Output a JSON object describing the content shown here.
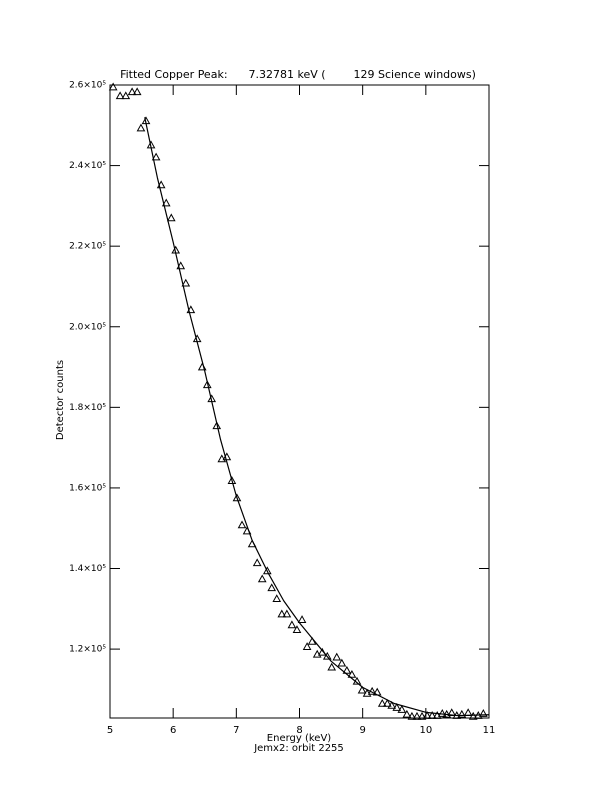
{
  "chart_data": {
    "type": "scatter",
    "title": "Fitted Copper Peak:      7.32781 keV (        129 Science windows)",
    "x_label": "Energy (keV)",
    "subtitle": "Jemx2: orbit 2255",
    "y_label": "Detector counts",
    "xlim": [
      5,
      11
    ],
    "xticks": [
      5,
      6,
      7,
      8,
      9,
      10,
      11
    ],
    "ylim": [
      102900,
      260000
    ],
    "yticks": [
      {
        "value": 120000,
        "label": "1.2×10⁵"
      },
      {
        "value": 140000,
        "label": "1.4×10⁵"
      },
      {
        "value": 160000,
        "label": "1.6×10⁵"
      },
      {
        "value": 180000,
        "label": "1.8×10⁵"
      },
      {
        "value": 200000,
        "label": "2.0×10⁵"
      },
      {
        "value": 220000,
        "label": "2.2×10⁵"
      },
      {
        "value": 240000,
        "label": "2.4×10⁵"
      },
      {
        "value": 260000,
        "label": "2.6×10⁵"
      }
    ],
    "grid": false,
    "series": [
      {
        "type": "scatter",
        "marker": "triangle",
        "color": "#000000",
        "x": [
          5.05,
          5.16,
          5.25,
          5.35,
          5.43,
          5.49,
          5.57,
          5.65,
          5.73,
          5.81,
          5.89,
          5.97,
          6.04,
          6.12,
          6.2,
          6.28,
          6.38,
          6.46,
          6.54,
          6.61,
          6.69,
          6.77,
          6.85,
          6.93,
          7.01,
          7.09,
          7.17,
          7.25,
          7.33,
          7.41,
          7.49,
          7.56,
          7.64,
          7.72,
          7.8,
          7.88,
          7.96,
          8.04,
          8.12,
          8.2,
          8.28,
          8.36,
          8.44,
          8.51,
          8.59,
          8.67,
          8.75,
          8.83,
          8.91,
          8.99,
          9.07,
          9.15,
          9.23,
          9.31,
          9.39,
          9.46,
          9.54,
          9.62,
          9.7,
          9.78,
          9.86,
          9.94,
          10.02,
          10.1,
          10.18,
          10.26,
          10.33,
          10.41,
          10.49,
          10.57,
          10.67,
          10.75,
          10.83,
          10.91
        ],
        "values": [
          259500,
          257300,
          257300,
          258300,
          258300,
          249300,
          251100,
          245100,
          242100,
          235200,
          230700,
          227000,
          219000,
          215100,
          210800,
          204200,
          197000,
          190000,
          185600,
          182100,
          175400,
          167200,
          167700,
          161800,
          157500,
          150800,
          149300,
          146100,
          141400,
          137400,
          139400,
          135200,
          132500,
          128700,
          128700,
          126000,
          124800,
          127300,
          120600,
          121900,
          118700,
          119200,
          118200,
          115500,
          118000,
          116500,
          114700,
          113700,
          112000,
          109800,
          109000,
          109500,
          109300,
          106500,
          106500,
          106000,
          105500,
          105000,
          103800,
          103300,
          103300,
          103300,
          103500,
          103500,
          103500,
          104000,
          103800,
          104200,
          103500,
          103800,
          104200,
          103300,
          103500,
          104000
        ]
      },
      {
        "type": "line",
        "color": "#000000",
        "x": [
          5.55,
          5.75,
          6,
          6.25,
          6.5,
          6.75,
          7,
          7.25,
          7.5,
          7.75,
          8,
          8.5,
          9,
          9.5,
          10,
          10.5,
          11
        ],
        "values": [
          252000,
          237000,
          221000,
          204000,
          189000,
          172000,
          158000,
          147000,
          139000,
          132000,
          126500,
          117000,
          110500,
          106500,
          104300,
          103500,
          103700
        ]
      }
    ]
  }
}
